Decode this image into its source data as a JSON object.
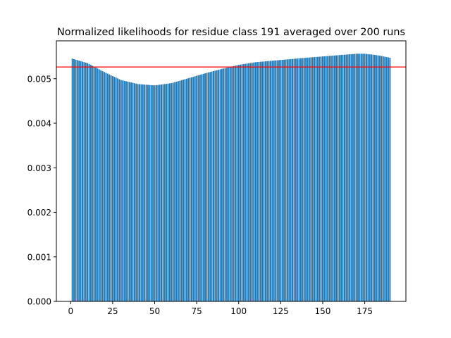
{
  "chart_data": {
    "type": "bar",
    "title": "Normalized likelihoods for residue class 191 averaged over 200 runs",
    "xlabel": "",
    "ylabel": "",
    "x_range": [
      1,
      190
    ],
    "xlim": [
      -8.5,
      199.5
    ],
    "ylim": [
      0,
      0.00585
    ],
    "xticks": [
      0,
      25,
      50,
      75,
      100,
      125,
      150,
      175
    ],
    "xtick_labels": [
      "0",
      "25",
      "50",
      "75",
      "100",
      "125",
      "150",
      "175"
    ],
    "yticks": [
      0,
      0.001,
      0.002,
      0.003,
      0.004,
      0.005
    ],
    "ytick_labels": [
      "0.000",
      "0.001",
      "0.002",
      "0.003",
      "0.004",
      "0.005"
    ],
    "reference_line": {
      "y": 0.005263,
      "color": "#ff0000"
    },
    "profile_points": [
      [
        1,
        0.00545
      ],
      [
        10,
        0.00535
      ],
      [
        20,
        0.00515
      ],
      [
        30,
        0.00497
      ],
      [
        40,
        0.00488
      ],
      [
        50,
        0.00485
      ],
      [
        60,
        0.0049
      ],
      [
        70,
        0.00501
      ],
      [
        80,
        0.00512
      ],
      [
        90,
        0.00522
      ],
      [
        100,
        0.00531
      ],
      [
        110,
        0.00537
      ],
      [
        125,
        0.00542
      ],
      [
        140,
        0.00547
      ],
      [
        150,
        0.0055
      ],
      [
        160,
        0.00553
      ],
      [
        170,
        0.00556
      ],
      [
        175,
        0.00556
      ],
      [
        180,
        0.00554
      ],
      [
        185,
        0.00551
      ],
      [
        190,
        0.00547
      ]
    ],
    "bar_color": "#1f77b4",
    "grid": false,
    "legend": "none"
  }
}
